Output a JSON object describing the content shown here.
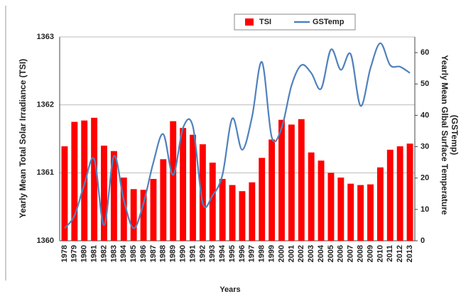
{
  "chart_data": {
    "type": "bar-line",
    "categories": [
      "1978",
      "1979",
      "1980",
      "1981",
      "1982",
      "1983",
      "1984",
      "1985",
      "1986",
      "1987",
      "1988",
      "1989",
      "1990",
      "1991",
      "1992",
      "1993",
      "1994",
      "1995",
      "1996",
      "1997",
      "1998",
      "1999",
      "2000",
      "2001",
      "2002",
      "2003",
      "2004",
      "2005",
      "2006",
      "2007",
      "2008",
      "2009",
      "2010",
      "2011",
      "2012",
      "2013"
    ],
    "series": [
      {
        "name": "TSI",
        "type": "bar",
        "color": "#ff0000",
        "values": [
          1361.39,
          1361.75,
          1361.77,
          1361.81,
          1361.4,
          1361.32,
          1360.93,
          1360.76,
          1360.75,
          1360.91,
          1361.2,
          1361.76,
          1361.66,
          1361.56,
          1361.42,
          1361.15,
          1360.91,
          1360.82,
          1360.73,
          1360.86,
          1361.22,
          1361.49,
          1361.78,
          1361.71,
          1361.79,
          1361.3,
          1361.18,
          1361.0,
          1360.93,
          1360.84,
          1360.82,
          1360.83,
          1361.08,
          1361.34,
          1361.39,
          1361.43
        ]
      },
      {
        "name": "GSTemp",
        "type": "line",
        "axis": "y2",
        "color": "#4f81bd",
        "values": [
          4,
          8,
          18,
          26,
          5,
          27,
          13,
          4,
          12,
          25,
          34,
          21,
          36,
          36.5,
          12,
          14.5,
          21,
          39,
          29,
          39.5,
          57,
          33,
          36,
          49.5,
          56,
          53.5,
          48.5,
          61,
          54.5,
          59.5,
          43,
          55,
          63,
          56,
          55.5,
          53.5
        ]
      }
    ],
    "ylim": [
      1360,
      1363
    ],
    "yticks": [
      1360,
      1361,
      1362,
      1363
    ],
    "y2lim": [
      0,
      65
    ],
    "y2ticks": [
      0,
      10,
      20,
      30,
      40,
      50,
      60
    ],
    "ylabel": "Yearly Mean Total Solar Irradiance (TSI)",
    "y2label": [
      "Yearly Mean Glbal Surface Temperature",
      "(GSTemp)"
    ],
    "xlabel": "Years",
    "grid": true,
    "legend": "top"
  }
}
